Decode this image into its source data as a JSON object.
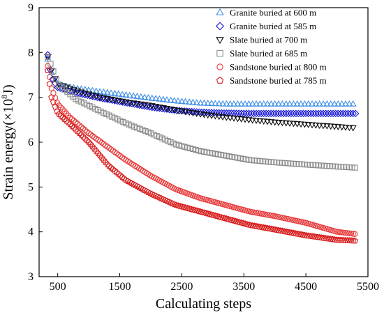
{
  "chart_data": {
    "type": "scatter",
    "xlabel": "Calculating steps",
    "ylabel_main": "Strain energy(×10",
    "ylabel_sup": "8",
    "ylabel_unit": "J)",
    "xlim": [
      200,
      5500
    ],
    "ylim": [
      3,
      9
    ],
    "xticks": [
      500,
      1500,
      2500,
      3500,
      4500,
      5500
    ],
    "yticks": [
      3,
      4,
      5,
      6,
      7,
      8,
      9
    ],
    "legend_position": "top-right",
    "series": [
      {
        "name": "Granite buried at 600 m",
        "marker": "triangle-up",
        "color": "#3f8fe8",
        "points": [
          [
            340,
            7.85
          ],
          [
            400,
            7.55
          ],
          [
            500,
            7.28
          ],
          [
            800,
            7.2
          ],
          [
            1200,
            7.12
          ],
          [
            1600,
            7.05
          ],
          [
            2000,
            6.98
          ],
          [
            2400,
            6.92
          ],
          [
            2800,
            6.87
          ],
          [
            3200,
            6.85
          ],
          [
            3600,
            6.85
          ],
          [
            4000,
            6.85
          ],
          [
            4500,
            6.85
          ],
          [
            5300,
            6.85
          ]
        ]
      },
      {
        "name": "Granite buried at 585 m",
        "marker": "diamond",
        "color": "#1a1adb",
        "points": [
          [
            340,
            7.95
          ],
          [
            400,
            7.45
          ],
          [
            500,
            7.22
          ],
          [
            800,
            7.1
          ],
          [
            1200,
            6.98
          ],
          [
            1600,
            6.88
          ],
          [
            2000,
            6.78
          ],
          [
            2400,
            6.71
          ],
          [
            2800,
            6.67
          ],
          [
            3200,
            6.65
          ],
          [
            3600,
            6.64
          ],
          [
            4000,
            6.64
          ],
          [
            4500,
            6.64
          ],
          [
            5300,
            6.64
          ]
        ]
      },
      {
        "name": "Slate buried at 700 m",
        "marker": "triangle-down",
        "color": "#111111",
        "points": [
          [
            340,
            7.9
          ],
          [
            400,
            7.6
          ],
          [
            500,
            7.3
          ],
          [
            800,
            7.15
          ],
          [
            1200,
            7.0
          ],
          [
            1600,
            6.9
          ],
          [
            2000,
            6.82
          ],
          [
            2400,
            6.72
          ],
          [
            2800,
            6.63
          ],
          [
            3200,
            6.56
          ],
          [
            3600,
            6.5
          ],
          [
            4000,
            6.45
          ],
          [
            4500,
            6.4
          ],
          [
            5300,
            6.32
          ]
        ]
      },
      {
        "name": "Slate buried at 685 m",
        "marker": "square",
        "color": "#8c8c8c",
        "points": [
          [
            340,
            7.9
          ],
          [
            400,
            7.7
          ],
          [
            500,
            7.3
          ],
          [
            800,
            6.95
          ],
          [
            1200,
            6.68
          ],
          [
            1600,
            6.42
          ],
          [
            2000,
            6.2
          ],
          [
            2400,
            5.95
          ],
          [
            2800,
            5.8
          ],
          [
            3200,
            5.7
          ],
          [
            3600,
            5.6
          ],
          [
            4000,
            5.55
          ],
          [
            4500,
            5.5
          ],
          [
            5300,
            5.43
          ]
        ]
      },
      {
        "name": "Sandstone buried at 800 m",
        "marker": "circle",
        "color": "#e83a3a",
        "points": [
          [
            340,
            7.7
          ],
          [
            400,
            7.2
          ],
          [
            500,
            6.85
          ],
          [
            700,
            6.55
          ],
          [
            1000,
            6.2
          ],
          [
            1300,
            5.9
          ],
          [
            1600,
            5.6
          ],
          [
            2000,
            5.25
          ],
          [
            2400,
            4.95
          ],
          [
            2800,
            4.75
          ],
          [
            3200,
            4.6
          ],
          [
            3600,
            4.45
          ],
          [
            4000,
            4.35
          ],
          [
            4500,
            4.2
          ],
          [
            5000,
            4.0
          ],
          [
            5300,
            3.95
          ]
        ]
      },
      {
        "name": "Sandstone buried at 785 m",
        "marker": "pentagon",
        "color": "#d81b1b",
        "points": [
          [
            340,
            7.6
          ],
          [
            400,
            7.0
          ],
          [
            500,
            6.65
          ],
          [
            700,
            6.4
          ],
          [
            1000,
            6.0
          ],
          [
            1300,
            5.5
          ],
          [
            1600,
            5.15
          ],
          [
            2000,
            4.85
          ],
          [
            2400,
            4.6
          ],
          [
            2800,
            4.45
          ],
          [
            3200,
            4.3
          ],
          [
            3600,
            4.15
          ],
          [
            4000,
            4.05
          ],
          [
            4500,
            3.92
          ],
          [
            5000,
            3.82
          ],
          [
            5300,
            3.8
          ]
        ]
      }
    ]
  }
}
